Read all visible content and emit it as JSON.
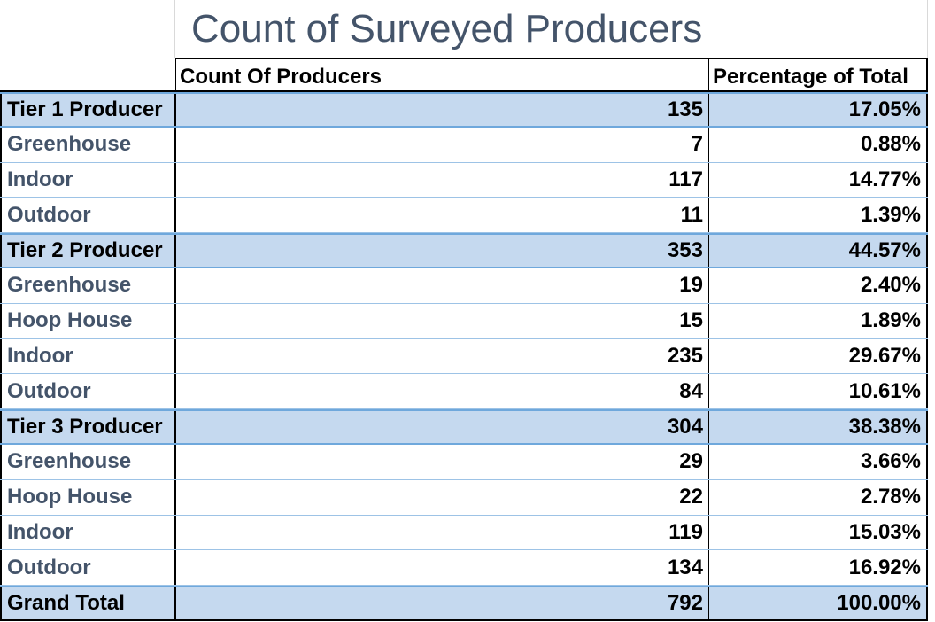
{
  "title": "Count of Surveyed Producers",
  "headers": {
    "count": "Count Of Producers",
    "percentage": "Percentage of Total"
  },
  "rows": [
    {
      "type": "tier",
      "label": "Tier 1 Producer",
      "count": "135",
      "pct": "17.05%"
    },
    {
      "type": "sub",
      "label": "Greenhouse",
      "count": "7",
      "pct": "0.88%"
    },
    {
      "type": "sub",
      "label": "Indoor",
      "count": "117",
      "pct": "14.77%"
    },
    {
      "type": "sub",
      "label": "Outdoor",
      "count": "11",
      "pct": "1.39%"
    },
    {
      "type": "tier",
      "label": "Tier 2 Producer",
      "count": "353",
      "pct": "44.57%"
    },
    {
      "type": "sub",
      "label": "Greenhouse",
      "count": "19",
      "pct": "2.40%"
    },
    {
      "type": "sub",
      "label": "Hoop House",
      "count": "15",
      "pct": "1.89%"
    },
    {
      "type": "sub",
      "label": "Indoor",
      "count": "235",
      "pct": "29.67%"
    },
    {
      "type": "sub",
      "label": "Outdoor",
      "count": "84",
      "pct": "10.61%"
    },
    {
      "type": "tier",
      "label": "Tier 3 Producer",
      "count": "304",
      "pct": "38.38%"
    },
    {
      "type": "sub",
      "label": "Greenhouse",
      "count": "29",
      "pct": "3.66%"
    },
    {
      "type": "sub",
      "label": "Hoop House",
      "count": "22",
      "pct": "2.78%"
    },
    {
      "type": "sub",
      "label": "Indoor",
      "count": "119",
      "pct": "15.03%"
    },
    {
      "type": "sub",
      "label": "Outdoor",
      "count": "134",
      "pct": "16.92%"
    },
    {
      "type": "total",
      "label": "Grand Total",
      "count": "792",
      "pct": "100.00%"
    }
  ],
  "colors": {
    "tier_fill": "#c5d9ef",
    "title_text": "#44546a",
    "sub_label_text": "#44546a",
    "rule_blue": "#6fa8dc"
  }
}
